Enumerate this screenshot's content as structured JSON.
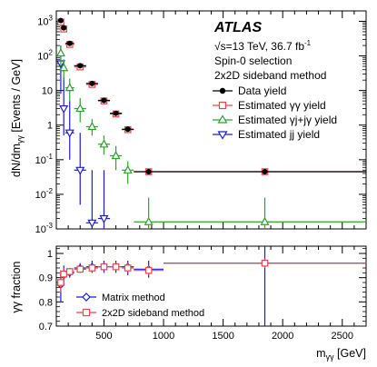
{
  "colors": {
    "data": "#000000",
    "gg": "#e8464e",
    "gj": "#2ca02c",
    "jj": "#1c1ccc",
    "matrix": "#1c1ccc",
    "sideband": "#e8464e",
    "frame": "#000000"
  },
  "annotation": {
    "brand": "ATLAS",
    "energy": "√s=13 TeV, 36.7 fb",
    "lumi_exp": "-1",
    "selection": "Spin-0 selection",
    "method": "2x2D sideband method"
  },
  "chart_data": [
    {
      "type": "scatter",
      "panel": "top",
      "ylabel_main": "dN/dm",
      "ylabel_sub": "γγ",
      "ylabel_units": " [Events / GeV]",
      "yscale": "log",
      "ylim": [
        0.001,
        2000
      ],
      "xlim": [
        100,
        2700
      ],
      "yticks": [
        {
          "v": 0.001,
          "base": "10",
          "exp": "-3"
        },
        {
          "v": 0.01,
          "base": "10",
          "exp": "-2"
        },
        {
          "v": 0.1,
          "base": "10",
          "exp": "-1"
        },
        {
          "v": 1,
          "base": "1",
          "exp": ""
        },
        {
          "v": 10,
          "base": "10",
          "exp": ""
        },
        {
          "v": 100,
          "base": "10",
          "exp": "2"
        },
        {
          "v": 1000,
          "base": "10",
          "exp": "3"
        }
      ],
      "legend": [
        {
          "key": "data",
          "label": "Data yield",
          "marker": "dot"
        },
        {
          "key": "gg",
          "label": "Estimated γγ yield",
          "marker": "square"
        },
        {
          "key": "gj",
          "label": "Estimated γj+jγ yield",
          "marker": "triangle-up"
        },
        {
          "key": "jj",
          "label": "Estimated jj yield",
          "marker": "triangle-down"
        }
      ],
      "bins": [
        [
          125,
          150
        ],
        [
          150,
          175
        ],
        [
          175,
          250
        ],
        [
          250,
          350
        ],
        [
          350,
          450
        ],
        [
          450,
          550
        ],
        [
          550,
          650
        ],
        [
          650,
          750
        ],
        [
          750,
          1000
        ],
        [
          1000,
          2700
        ]
      ],
      "series": [
        {
          "key": "data",
          "name": "Data yield",
          "values": [
            1050,
            650,
            230,
            52,
            16,
            5.2,
            2.2,
            0.76,
            0.045,
            null
          ],
          "errors": [
            [
              null,
              null
            ],
            [
              null,
              null
            ],
            [
              null,
              null
            ],
            [
              null,
              null
            ],
            [
              null,
              null
            ],
            [
              null,
              null
            ],
            [
              null,
              null
            ],
            [
              null,
              null
            ],
            [
              null,
              null
            ],
            [
              null,
              null
            ]
          ]
        },
        {
          "key": "gg",
          "name": "Estimated γγ yield",
          "values": [
            950,
            600,
            215,
            48,
            15,
            5.0,
            2.1,
            0.74,
            0.045,
            null
          ],
          "errors": [
            [
              null,
              null
            ],
            [
              null,
              null
            ],
            [
              null,
              null
            ],
            [
              null,
              null
            ],
            [
              null,
              null
            ],
            [
              null,
              null
            ],
            [
              null,
              null
            ],
            [
              null,
              null
            ],
            [
              null,
              null
            ],
            [
              null,
              null
            ]
          ]
        },
        {
          "key": "gj",
          "name": "Estimated γj+jγ yield",
          "values": [
            120,
            45,
            12,
            3.0,
            0.9,
            0.28,
            0.13,
            0.05,
            0.0016,
            null
          ],
          "errors": [
            [
              50,
              200
            ],
            [
              20,
              80
            ],
            [
              5,
              22
            ],
            [
              1.2,
              6
            ],
            [
              0.5,
              1.5
            ],
            [
              0.14,
              0.5
            ],
            [
              0.05,
              0.25
            ],
            [
              0.02,
              0.09
            ],
            [
              0.001,
              0.008
            ],
            [
              null,
              null
            ]
          ]
        },
        {
          "key": "jj",
          "name": "Estimated jj yield",
          "values": [
            60,
            3.0,
            0.6,
            0.05,
            0.0015,
            0.002,
            null,
            null,
            null,
            null
          ],
          "errors": [
            [
              8,
              200
            ],
            [
              0.5,
              25
            ],
            [
              0.1,
              5
            ],
            [
              0.005,
              0.6
            ],
            [
              0.001,
              0.05
            ],
            [
              0.001,
              0.05
            ],
            [
              null,
              null
            ],
            [
              null,
              null
            ],
            [
              null,
              null
            ],
            [
              null,
              null
            ]
          ]
        }
      ],
      "tail_points": {
        "data": {
          "x": 1850,
          "y": 0.045
        },
        "gg": {
          "x": 1850,
          "y": 0.045
        },
        "gj": {
          "x": 1850,
          "y": 0.0016,
          "err": [
            0.001,
            0.008
          ]
        }
      }
    },
    {
      "type": "scatter",
      "panel": "bottom",
      "ylabel": "γγ fraction",
      "xlabel_main": "m",
      "xlabel_sub": "γγ",
      "xlabel_units": " [GeV]",
      "xlim": [
        100,
        2700
      ],
      "ylim": [
        0.7,
        1.03
      ],
      "yticks": [
        0.7,
        0.8,
        0.9,
        1
      ],
      "xticks": [
        500,
        1000,
        1500,
        2000,
        2500
      ],
      "legend": [
        {
          "key": "matrix",
          "label": "Matrix method",
          "marker": "diamond"
        },
        {
          "key": "sideband",
          "label": "2x2D sideband method",
          "marker": "square"
        }
      ],
      "bins": [
        [
          125,
          150
        ],
        [
          150,
          175
        ],
        [
          175,
          250
        ],
        [
          250,
          350
        ],
        [
          350,
          450
        ],
        [
          450,
          550
        ],
        [
          550,
          650
        ],
        [
          650,
          750
        ],
        [
          750,
          1000
        ],
        [
          1000,
          2700
        ]
      ],
      "series": [
        {
          "key": "matrix",
          "name": "Matrix method",
          "values": [
            0.87,
            0.91,
            0.92,
            0.94,
            0.945,
            0.945,
            0.945,
            0.945,
            0.935,
            0.96
          ],
          "errors": [
            [
              0.8,
              0.93
            ],
            [
              0.87,
              0.95
            ],
            [
              0.9,
              0.94
            ],
            [
              0.92,
              0.96
            ],
            [
              0.92,
              0.97
            ],
            [
              0.92,
              0.97
            ],
            [
              0.92,
              0.97
            ],
            [
              0.91,
              0.97
            ],
            [
              0.9,
              0.97
            ],
            [
              0.7,
              1.03
            ]
          ]
        },
        {
          "key": "sideband",
          "name": "2x2D sideband method",
          "values": [
            0.88,
            0.915,
            0.925,
            0.935,
            0.94,
            0.945,
            0.945,
            0.94,
            0.93,
            0.96
          ],
          "errors": [
            [
              0.84,
              0.93
            ],
            [
              0.89,
              0.94
            ],
            [
              0.91,
              0.94
            ],
            [
              0.92,
              0.95
            ],
            [
              0.925,
              0.955
            ],
            [
              0.93,
              0.96
            ],
            [
              0.93,
              0.96
            ],
            [
              0.92,
              0.96
            ],
            [
              0.91,
              0.95
            ],
            [
              0.94,
              0.98
            ]
          ]
        }
      ],
      "tail_x": 1850
    }
  ]
}
